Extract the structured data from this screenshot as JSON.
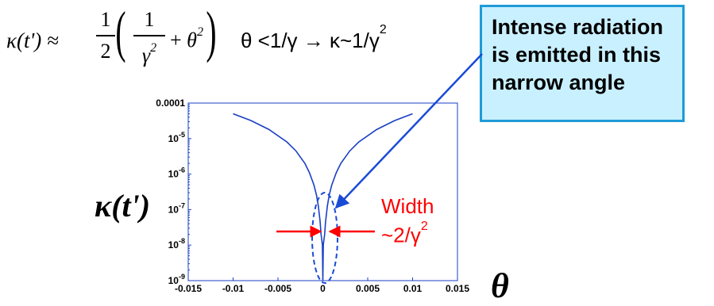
{
  "formula": {
    "lhs": "κ(t') ≈",
    "one_half_num": "1",
    "one_half_den": "2",
    "inner_num": "1",
    "inner_den_base": "γ",
    "inner_den_exp": "2",
    "plus": "+",
    "theta": "θ",
    "theta_exp": "2",
    "condition_text": "θ <1/γ → κ~1/γ",
    "condition_exp": "2"
  },
  "callout": {
    "lines": [
      "Intense radiation",
      "is emitted in this",
      "narrow angle"
    ],
    "fill_color": "#c9f0ff",
    "border_color": "#1f9bd6",
    "arrow_color": "#1a4bd6"
  },
  "annotation": {
    "width_line1": "Width",
    "width_line2": "~2/γ",
    "width_exp": "2",
    "color": "#ff0000"
  },
  "axis_labels": {
    "y": "κ(t')",
    "x": "θ"
  },
  "chart_data": {
    "type": "line",
    "xlabel": "θ",
    "ylabel": "κ(t')",
    "xlim": [
      -0.015,
      0.015
    ],
    "ylim": [
      1e-09,
      0.0001
    ],
    "yscale": "log",
    "x_ticks": [
      "-0.015",
      "-0.01",
      "-0.005",
      "0",
      "0.005",
      "0.01",
      "0.015"
    ],
    "y_ticks": [
      {
        "base": "10",
        "exp": "-9",
        "value": 1e-09
      },
      {
        "base": "10",
        "exp": "-8",
        "value": 1e-08
      },
      {
        "base": "10",
        "exp": "-7",
        "value": 1e-07
      },
      {
        "base": "10",
        "exp": "-6",
        "value": 1e-06
      },
      {
        "base": "10",
        "exp": "-5",
        "value": 1e-05
      },
      {
        "base": "0.0001",
        "exp": "",
        "value": 0.0001
      }
    ],
    "series": [
      {
        "color": "#1a3fc4",
        "x": [
          -0.01,
          -0.008,
          -0.006,
          -0.004,
          -0.003,
          -0.002,
          -0.0015,
          -0.001,
          -0.0007,
          -0.0005,
          -0.0003,
          -0.0002,
          -0.0001,
          -5e-05,
          0,
          5e-05,
          0.0001,
          0.0002,
          0.0003,
          0.0005,
          0.0007,
          0.001,
          0.0015,
          0.002,
          0.003,
          0.004,
          0.006,
          0.008,
          0.01
        ],
        "y": [
          5e-05,
          3.2e-05,
          1.8e-05,
          8e-06,
          4.5e-06,
          2e-06,
          1.1e-06,
          5e-07,
          2.5e-07,
          1.25e-07,
          4.5e-08,
          2e-08,
          1.3e-08,
          1e-08,
          1e-09,
          1e-08,
          1.3e-08,
          2e-08,
          4.5e-08,
          1.25e-07,
          2.5e-07,
          5e-07,
          1.1e-06,
          2e-06,
          4.5e-06,
          8e-06,
          1.8e-05,
          3.2e-05,
          5e-05
        ]
      }
    ]
  }
}
